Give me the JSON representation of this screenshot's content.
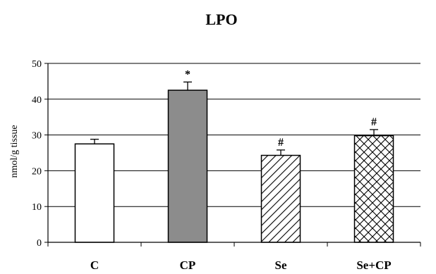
{
  "chart_data": {
    "type": "bar",
    "title": "LPO",
    "ylabel": "nmol/g tissue",
    "xlabel": "",
    "categories": [
      "C",
      "CP",
      "Se",
      "Se+CP"
    ],
    "values": [
      27.5,
      42.5,
      24.3,
      29.8
    ],
    "errors": [
      1.3,
      2.3,
      1.5,
      1.7
    ],
    "annotations": [
      "",
      "*",
      "#",
      "#"
    ],
    "bar_styles": [
      "white",
      "gray",
      "diagonal-hatch",
      "cross-hatch"
    ],
    "ylim": [
      0,
      50
    ],
    "yticks": [
      0,
      10,
      20,
      30,
      40,
      50
    ],
    "grid": true,
    "colors": {
      "bar_outline": "#000000",
      "gray_fill": "#8c8c8c",
      "background": "#ffffff"
    }
  }
}
